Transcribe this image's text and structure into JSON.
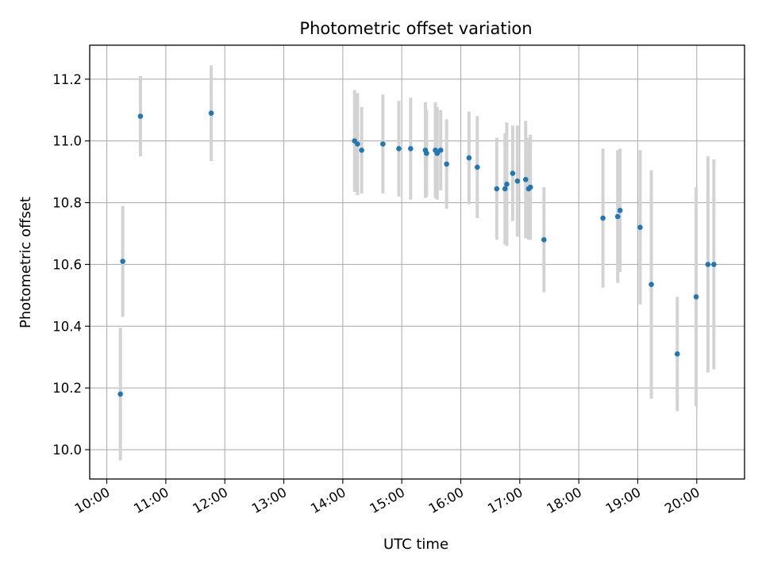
{
  "chart_data": {
    "type": "scatter",
    "title": "Photometric offset variation",
    "xlabel": "UTC time",
    "ylabel": "Photometric offset",
    "x_unit": "UTC time of day (hours)",
    "xlim": [
      9.71,
      20.81
    ],
    "ylim": [
      9.905,
      11.31
    ],
    "x_ticks": [
      10,
      11,
      12,
      13,
      14,
      15,
      16,
      17,
      18,
      19,
      20
    ],
    "x_tick_labels": [
      "10:00",
      "11:00",
      "12:00",
      "13:00",
      "14:00",
      "15:00",
      "16:00",
      "17:00",
      "18:00",
      "19:00",
      "20:00"
    ],
    "y_ticks": [
      10.0,
      10.2,
      10.4,
      10.6,
      10.8,
      11.0,
      11.2
    ],
    "y_tick_labels": [
      "10.0",
      "10.2",
      "10.4",
      "10.6",
      "10.8",
      "11.0",
      "11.2"
    ],
    "grid": true,
    "colors": {
      "point": "#1f77b4",
      "errorbar": "#d3d3d3",
      "grid": "#b0b0b0"
    },
    "points": [
      {
        "x": 10.23,
        "y": 10.18,
        "yerr": 0.215
      },
      {
        "x": 10.27,
        "y": 10.61,
        "yerr": 0.18
      },
      {
        "x": 10.57,
        "y": 11.08,
        "yerr": 0.13
      },
      {
        "x": 11.77,
        "y": 11.09,
        "yerr": 0.155
      },
      {
        "x": 14.2,
        "y": 11.0,
        "yerr": 0.165
      },
      {
        "x": 14.25,
        "y": 10.99,
        "yerr": 0.165
      },
      {
        "x": 14.32,
        "y": 10.97,
        "yerr": 0.14
      },
      {
        "x": 14.68,
        "y": 10.99,
        "yerr": 0.16
      },
      {
        "x": 14.95,
        "y": 10.975,
        "yerr": 0.155
      },
      {
        "x": 15.15,
        "y": 10.975,
        "yerr": 0.165
      },
      {
        "x": 15.4,
        "y": 10.97,
        "yerr": 0.155
      },
      {
        "x": 15.42,
        "y": 10.96,
        "yerr": 0.14
      },
      {
        "x": 15.57,
        "y": 10.97,
        "yerr": 0.155
      },
      {
        "x": 15.6,
        "y": 10.96,
        "yerr": 0.15
      },
      {
        "x": 15.66,
        "y": 10.97,
        "yerr": 0.13
      },
      {
        "x": 15.76,
        "y": 10.925,
        "yerr": 0.145
      },
      {
        "x": 16.14,
        "y": 10.945,
        "yerr": 0.15
      },
      {
        "x": 16.28,
        "y": 10.915,
        "yerr": 0.165
      },
      {
        "x": 16.61,
        "y": 10.845,
        "yerr": 0.165
      },
      {
        "x": 16.75,
        "y": 10.845,
        "yerr": 0.18
      },
      {
        "x": 16.78,
        "y": 10.86,
        "yerr": 0.2
      },
      {
        "x": 16.88,
        "y": 10.895,
        "yerr": 0.155
      },
      {
        "x": 16.96,
        "y": 10.87,
        "yerr": 0.18
      },
      {
        "x": 17.1,
        "y": 10.875,
        "yerr": 0.19
      },
      {
        "x": 17.15,
        "y": 10.845,
        "yerr": 0.165
      },
      {
        "x": 17.18,
        "y": 10.85,
        "yerr": 0.17
      },
      {
        "x": 17.41,
        "y": 10.68,
        "yerr": 0.17
      },
      {
        "x": 18.41,
        "y": 10.75,
        "yerr": 0.225
      },
      {
        "x": 18.66,
        "y": 10.755,
        "yerr": 0.215
      },
      {
        "x": 18.7,
        "y": 10.775,
        "yerr": 0.2
      },
      {
        "x": 19.04,
        "y": 10.72,
        "yerr": 0.25
      },
      {
        "x": 19.23,
        "y": 10.535,
        "yerr": 0.37
      },
      {
        "x": 19.67,
        "y": 10.31,
        "yerr": 0.185
      },
      {
        "x": 19.99,
        "y": 10.495,
        "yerr": 0.355
      },
      {
        "x": 20.19,
        "y": 10.6,
        "yerr": 0.35
      },
      {
        "x": 20.29,
        "y": 10.6,
        "yerr": 0.34
      }
    ]
  }
}
